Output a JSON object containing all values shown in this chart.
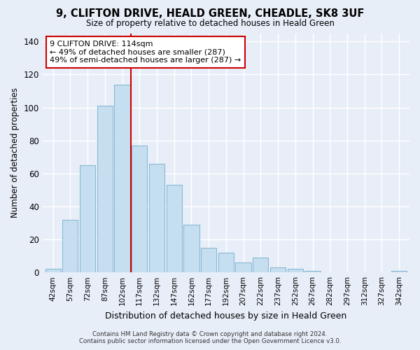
{
  "title": "9, CLIFTON DRIVE, HEALD GREEN, CHEADLE, SK8 3UF",
  "subtitle": "Size of property relative to detached houses in Heald Green",
  "xlabel": "Distribution of detached houses by size in Heald Green",
  "ylabel": "Number of detached properties",
  "bar_labels": [
    "42sqm",
    "57sqm",
    "72sqm",
    "87sqm",
    "102sqm",
    "117sqm",
    "132sqm",
    "147sqm",
    "162sqm",
    "177sqm",
    "192sqm",
    "207sqm",
    "222sqm",
    "237sqm",
    "252sqm",
    "267sqm",
    "282sqm",
    "297sqm",
    "312sqm",
    "327sqm",
    "342sqm"
  ],
  "bar_values": [
    2,
    32,
    65,
    101,
    114,
    77,
    66,
    53,
    29,
    15,
    12,
    6,
    9,
    3,
    2,
    1,
    0,
    0,
    0,
    0,
    1
  ],
  "bar_color": "#c6dff0",
  "bar_edge_color": "#8ab8d4",
  "vline_color": "#cc0000",
  "ylim": [
    0,
    145
  ],
  "yticks": [
    0,
    20,
    40,
    60,
    80,
    100,
    120,
    140
  ],
  "annotation_title": "9 CLIFTON DRIVE: 114sqm",
  "annotation_line1": "← 49% of detached houses are smaller (287)",
  "annotation_line2": "49% of semi-detached houses are larger (287) →",
  "annotation_box_color": "#ffffff",
  "annotation_box_edge": "#cc0000",
  "footer1": "Contains HM Land Registry data © Crown copyright and database right 2024.",
  "footer2": "Contains public sector information licensed under the Open Government Licence v3.0.",
  "background_color": "#e8eef8",
  "plot_background": "#e8eef8",
  "grid_color": "#ffffff",
  "vline_index": 4.5
}
